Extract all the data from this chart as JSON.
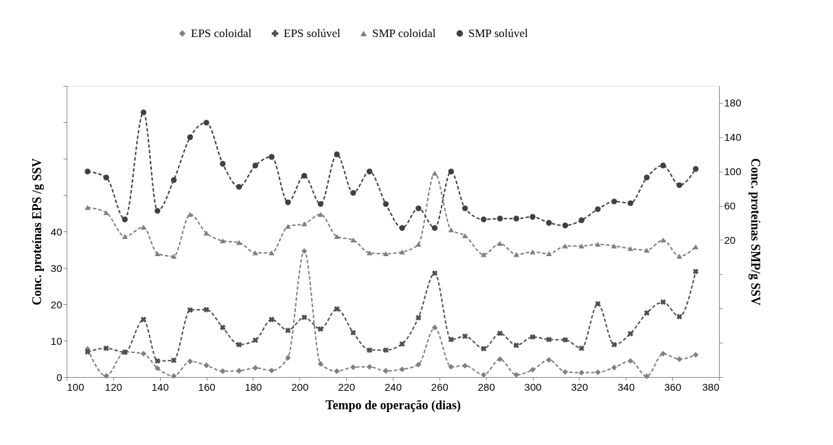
{
  "chart_data": {
    "type": "line",
    "xlabel": "Tempo de operação (dias)",
    "ylabel": "Conc. proteínas EPS /g SSV",
    "y2label": "Conc. proteínas SMP/g SSV",
    "x": [
      109,
      117,
      125,
      133,
      139,
      146,
      153,
      160,
      167,
      174,
      181,
      188,
      195,
      202,
      209,
      216,
      223,
      230,
      237,
      244,
      251,
      258,
      265,
      271,
      279,
      286,
      293,
      300,
      307,
      314,
      321,
      328,
      335,
      342,
      349,
      356,
      363,
      370
    ],
    "series": [
      {
        "name": "EPS coloidal",
        "color": "#808080",
        "marker": "diamond",
        "values": [
          7.7,
          0.3,
          6.9,
          6.4,
          2.4,
          0.3,
          4.3,
          3.2,
          1.6,
          1.7,
          2.5,
          1.8,
          5.3,
          34.6,
          3.6,
          1.6,
          2.7,
          2.8,
          1.7,
          2.1,
          3.4,
          13.6,
          2.8,
          3.1,
          0.6,
          4.9,
          0.6,
          2.0,
          4.7,
          1.4,
          1.2,
          1.3,
          2.6,
          4.4,
          0.2,
          6.4,
          4.9,
          6.1
        ]
      },
      {
        "name": "EPS solúvel",
        "color": "#505050",
        "marker": "cross",
        "values": [
          6.9,
          7.9,
          6.8,
          15.8,
          4.4,
          4.6,
          18.4,
          18.5,
          13.6,
          8.9,
          10.1,
          15.8,
          12.8,
          16.4,
          13.2,
          18.7,
          12.2,
          7.4,
          7.4,
          9.1,
          16.3,
          28.5,
          10.3,
          11.2,
          7.8,
          12.0,
          8.7,
          11.0,
          10.3,
          10.2,
          7.9,
          20.1,
          8.9,
          11.9,
          17.6,
          20.6,
          16.6,
          29.0
        ]
      },
      {
        "name": "SMP coloidal",
        "color": "#808080",
        "marker": "triangle",
        "axis": "y2",
        "values": [
          58,
          52,
          24,
          35,
          4,
          1,
          50,
          28,
          19,
          17,
          5,
          5,
          36,
          39,
          50,
          24,
          20,
          5,
          4,
          6,
          15,
          98,
          32,
          25,
          3,
          16,
          3,
          6,
          4,
          13,
          13,
          15,
          13,
          10,
          8,
          20,
          1,
          12
        ]
      },
      {
        "name": "SMP solúvel",
        "color": "#404040",
        "marker": "circle",
        "axis": "y2",
        "values": [
          100,
          93,
          44,
          169,
          54,
          90,
          140,
          157,
          109,
          82,
          107,
          117,
          64,
          95,
          62,
          120,
          75,
          100,
          62,
          34,
          57,
          34,
          100,
          57,
          44,
          45,
          45,
          47,
          40,
          37,
          43,
          56,
          65,
          63,
          93,
          107,
          84,
          103
        ]
      }
    ],
    "xlim": [
      100,
      380
    ],
    "xticks": [
      100,
      120,
      140,
      160,
      180,
      200,
      220,
      240,
      260,
      280,
      300,
      320,
      340,
      360,
      380
    ],
    "ylim": [
      0,
      80
    ],
    "yticks": [
      0,
      10,
      20,
      30,
      40,
      {
        "value": 50,
        "label": null
      },
      {
        "value": 60,
        "label": null
      },
      {
        "value": 70,
        "label": null
      },
      {
        "value": 80,
        "label": null
      }
    ],
    "y2lim": [
      -140,
      200
    ],
    "y2ticks": [
      {
        "value": -140,
        "label": null
      },
      {
        "value": -100,
        "label": null
      },
      {
        "value": -60,
        "label": null
      },
      {
        "value": -20,
        "label": null
      },
      20,
      60,
      100,
      140,
      180
    ],
    "line_style": "dashed",
    "legend": "top",
    "grid": false
  }
}
